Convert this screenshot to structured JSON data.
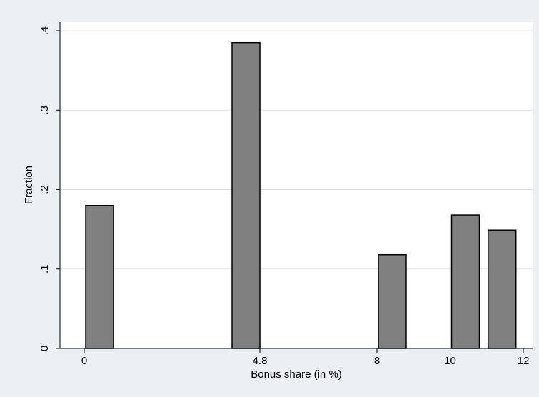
{
  "chart_data": {
    "type": "bar",
    "title": "",
    "xlabel": "Bonus share (in %)",
    "ylabel": "Fraction",
    "xlim": [
      -0.6,
      12.15
    ],
    "ylim": [
      0,
      0.4
    ],
    "x_ticks": [
      {
        "value": 0,
        "label": "0"
      },
      {
        "value": 4.8,
        "label": "4.8"
      },
      {
        "value": 8,
        "label": "8"
      },
      {
        "value": 10,
        "label": "10"
      },
      {
        "value": 12,
        "label": "12"
      }
    ],
    "y_ticks": [
      {
        "value": 0,
        "label": "0"
      },
      {
        "value": 0.1,
        "label": ".1"
      },
      {
        "value": 0.2,
        "label": ".2"
      },
      {
        "value": 0.3,
        "label": ".3"
      },
      {
        "value": 0.4,
        "label": ".4"
      }
    ],
    "bin_width": 0.8,
    "bins": [
      {
        "x_start": 0.0,
        "x_end": 0.8,
        "value": 0.18
      },
      {
        "x_start": 4.0,
        "x_end": 4.8,
        "value": 0.385
      },
      {
        "x_start": 8.0,
        "x_end": 8.8,
        "value": 0.118
      },
      {
        "x_start": 10.0,
        "x_end": 10.8,
        "value": 0.168
      },
      {
        "x_start": 11.0,
        "x_end": 11.8,
        "value": 0.149
      }
    ],
    "grid": true,
    "legend": "none",
    "colors": {
      "bar_fill": "#808080",
      "bar_stroke": "#000000",
      "background": "#eaf0f3",
      "plot_background": "#ffffff",
      "grid": "#e1e6e9"
    }
  }
}
